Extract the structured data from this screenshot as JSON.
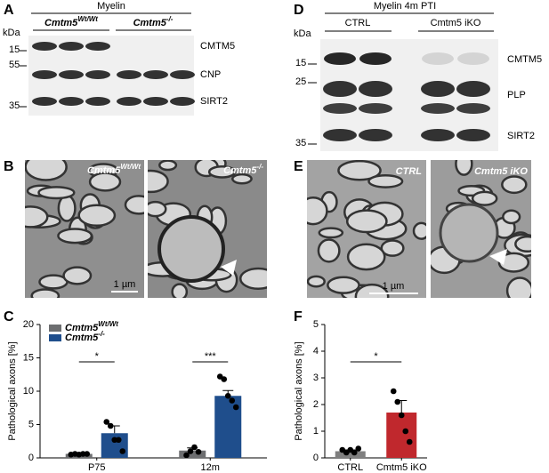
{
  "panels": {
    "A": {
      "letter": "A",
      "header": "Myelin",
      "groups": [
        {
          "name": "Cmtm5",
          "sup": "Wt/Wt"
        },
        {
          "name": "Cmtm5",
          "sup": "-/-"
        }
      ],
      "unit": "kDa",
      "markers": [
        15,
        55,
        35
      ],
      "bands": [
        "CMTM5",
        "CNP",
        "SIRT2"
      ]
    },
    "B": {
      "letter": "B",
      "images": [
        {
          "name": "Cmtm5",
          "sup": "Wt/Wt"
        },
        {
          "name": "Cmtm5",
          "sup": "-/-"
        }
      ],
      "scale": "1 µm"
    },
    "D": {
      "letter": "D",
      "header": "Myelin 4m  PTI",
      "groups": [
        "CTRL",
        "Cmtm5 iKO"
      ],
      "unit": "kDa",
      "markers": [
        15,
        25,
        35
      ],
      "bands": [
        "CMTM5",
        "PLP",
        "SIRT2"
      ]
    },
    "E": {
      "letter": "E",
      "images": [
        "CTRL",
        "Cmtm5 iKO"
      ],
      "scale": "1 µm"
    }
  },
  "chart_data": [
    {
      "letter": "C",
      "type": "bar",
      "y_label": "Pathological axons [%]",
      "categories": [
        "P75",
        "12m"
      ],
      "series": [
        {
          "name": "Cmtm5",
          "name_sup": "Wt/Wt",
          "color": "#6d6e70",
          "values": [
            0.6,
            1.1
          ],
          "errors": [
            0.1,
            0.4
          ],
          "points": [
            [
              0.5,
              0.6,
              0.5,
              0.6,
              0.6
            ],
            [
              0.4,
              1.0,
              1.6,
              0.9
            ]
          ]
        },
        {
          "name": "Cmtm5",
          "name_sup": "-/-",
          "color": "#1f4e8c",
          "values": [
            3.7,
            9.3
          ],
          "errors": [
            1.1,
            0.8
          ],
          "points": [
            [
              5.4,
              4.8,
              2.7,
              2.7,
              1.0
            ],
            [
              12.2,
              11.8,
              9.3,
              8.6,
              7.6
            ]
          ]
        }
      ],
      "ylim": [
        0,
        20
      ],
      "yticks": [
        0,
        5,
        10,
        15,
        20
      ],
      "significance": [
        "*",
        "***"
      ]
    },
    {
      "letter": "F",
      "type": "bar",
      "y_label": "Pathological axons [%]",
      "categories": [
        "CTRL",
        "Cmtm5 iKO"
      ],
      "series": [
        {
          "colors": [
            "#7f7f7f",
            "#c0282d"
          ],
          "values": [
            0.25,
            1.7
          ],
          "errors": [
            0.05,
            0.45
          ],
          "points": [
            [
              0.3,
              0.2,
              0.3,
              0.2,
              0.35
            ],
            [
              2.5,
              2.1,
              1.6,
              1.0,
              0.6
            ]
          ]
        }
      ],
      "ylim": [
        0,
        5
      ],
      "yticks": [
        0,
        1,
        2,
        3,
        4,
        5
      ],
      "significance": [
        "*"
      ]
    }
  ]
}
